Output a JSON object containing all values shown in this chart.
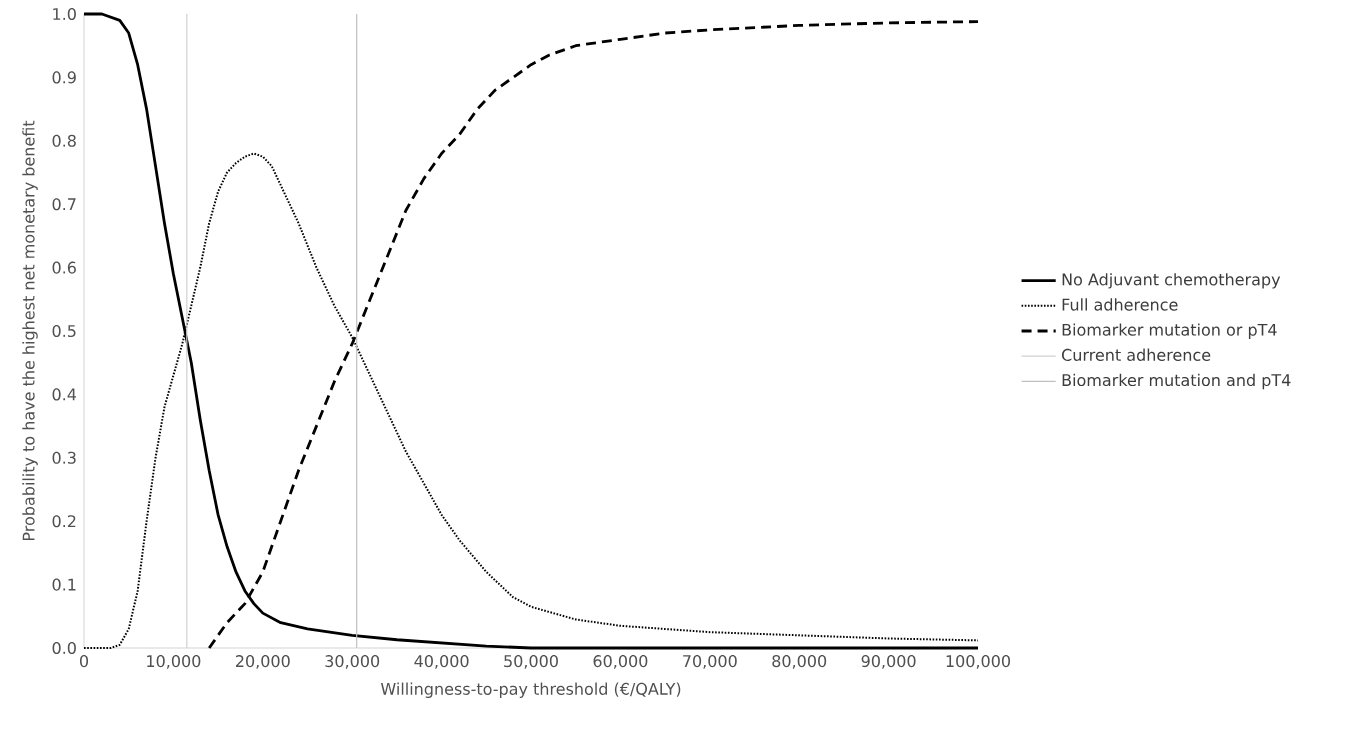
{
  "chart_data": {
    "type": "line",
    "xlabel": "Willingness-to-pay threshold (€/QALY)",
    "ylabel": "Probability to have the highest net monetary benefit",
    "xlim": [
      0,
      100000
    ],
    "xticks": [
      {
        "value": 0,
        "label": "0"
      },
      {
        "value": 10000,
        "label": "10,000"
      },
      {
        "value": 20000,
        "label": "20,000"
      },
      {
        "value": 30000,
        "label": "30,000"
      },
      {
        "value": 40000,
        "label": "40,000"
      },
      {
        "value": 50000,
        "label": "50,000"
      },
      {
        "value": 60000,
        "label": "60,000"
      },
      {
        "value": 70000,
        "label": "70,000"
      },
      {
        "value": 80000,
        "label": "80,000"
      },
      {
        "value": 90000,
        "label": "90,000"
      },
      {
        "value": 100000,
        "label": "100,000"
      }
    ],
    "ylim": [
      0,
      1
    ],
    "yticks": [
      {
        "value": 0,
        "label": "0.0"
      },
      {
        "value": 0.1,
        "label": "0.1"
      },
      {
        "value": 0.2,
        "label": "0.2"
      },
      {
        "value": 0.3,
        "label": "0.3"
      },
      {
        "value": 0.4,
        "label": "0.4"
      },
      {
        "value": 0.5,
        "label": "0.5"
      },
      {
        "value": 0.6,
        "label": "0.6"
      },
      {
        "value": 0.7,
        "label": "0.7"
      },
      {
        "value": 0.8,
        "label": "0.8"
      },
      {
        "value": 0.9,
        "label": "0.9"
      },
      {
        "value": 1,
        "label": "1.0"
      }
    ],
    "grid": false,
    "legend": "right",
    "series": [
      {
        "name": "No Adjuvant chemotherapy",
        "color": "#000000",
        "line_style": "solid",
        "x": [
          0,
          2000,
          4000,
          5000,
          6000,
          7000,
          8000,
          9000,
          10000,
          11000,
          12000,
          13000,
          14000,
          15000,
          16000,
          17000,
          18000,
          19000,
          20000,
          22000,
          25000,
          30000,
          35000,
          40000,
          45000,
          50000,
          60000,
          70000,
          80000,
          90000,
          100000
        ],
        "values": [
          1.0,
          1.0,
          0.99,
          0.97,
          0.92,
          0.85,
          0.76,
          0.67,
          0.59,
          0.52,
          0.45,
          0.36,
          0.28,
          0.21,
          0.16,
          0.12,
          0.09,
          0.07,
          0.055,
          0.04,
          0.03,
          0.02,
          0.013,
          0.008,
          0.003,
          0.0,
          0.0,
          0.0,
          0.0,
          0.0,
          0.0
        ]
      },
      {
        "name": "Full adherence",
        "color": "#000000",
        "line_style": "dotted",
        "x": [
          0,
          3000,
          4000,
          5000,
          6000,
          7000,
          8000,
          9000,
          10000,
          11000,
          12000,
          13000,
          14000,
          15000,
          16000,
          17000,
          18000,
          19000,
          20000,
          21000,
          22000,
          24000,
          26000,
          28000,
          30000,
          32000,
          34000,
          36000,
          38000,
          40000,
          42000,
          45000,
          48000,
          50000,
          55000,
          60000,
          70000,
          80000,
          90000,
          100000
        ],
        "values": [
          0.0,
          0.0,
          0.005,
          0.03,
          0.09,
          0.2,
          0.3,
          0.38,
          0.43,
          0.48,
          0.54,
          0.6,
          0.67,
          0.72,
          0.75,
          0.765,
          0.775,
          0.78,
          0.775,
          0.76,
          0.73,
          0.67,
          0.6,
          0.54,
          0.49,
          0.43,
          0.37,
          0.31,
          0.26,
          0.21,
          0.17,
          0.12,
          0.08,
          0.065,
          0.045,
          0.035,
          0.025,
          0.02,
          0.015,
          0.012
        ]
      },
      {
        "name": "Biomarker mutation or pT4",
        "color": "#000000",
        "line_style": "dashed",
        "x": [
          14000,
          16000,
          18000,
          20000,
          22000,
          24000,
          26000,
          28000,
          30000,
          32000,
          34000,
          36000,
          38000,
          40000,
          42000,
          44000,
          46000,
          48000,
          50000,
          52000,
          55000,
          60000,
          65000,
          70000,
          80000,
          90000,
          100000
        ],
        "values": [
          0.0,
          0.04,
          0.07,
          0.12,
          0.2,
          0.28,
          0.35,
          0.42,
          0.48,
          0.55,
          0.62,
          0.69,
          0.74,
          0.78,
          0.81,
          0.85,
          0.88,
          0.9,
          0.92,
          0.935,
          0.95,
          0.96,
          0.97,
          0.975,
          0.982,
          0.986,
          0.988
        ]
      },
      {
        "name": "Current adherence",
        "color": "#d0d0d0",
        "line_style": "solid",
        "x": [
          11500,
          11500
        ],
        "values": [
          0,
          1
        ]
      },
      {
        "name": "Biomarker mutation and pT4",
        "color": "#c0c0c0",
        "line_style": "solid",
        "x": [
          30500,
          30500
        ],
        "values": [
          0,
          1
        ]
      }
    ]
  }
}
